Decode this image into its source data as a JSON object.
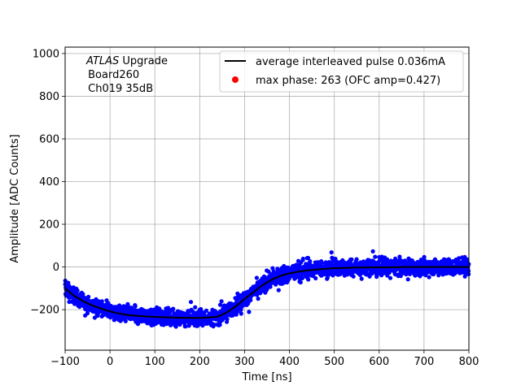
{
  "chart_data": {
    "type": "scatter",
    "xlabel": "Time [ns]",
    "ylabel": "Amplitude [ADC Counts]",
    "xlim": [
      -100,
      800
    ],
    "ylim": [
      -390,
      1030
    ],
    "x_ticks": [
      -100,
      0,
      100,
      200,
      300,
      400,
      500,
      600,
      700,
      800
    ],
    "y_ticks": [
      -200,
      0,
      200,
      400,
      600,
      800,
      1000
    ],
    "grid": true,
    "annotation": {
      "line1_italic": "ATLAS",
      "line1_rest": " Upgrade",
      "line2": " Board260",
      "line3": " Ch019 35dB"
    },
    "legend": {
      "placement": "top-right",
      "entries": [
        {
          "label": "average interleaved pulse 0.036mA",
          "color": "#000000",
          "marker": "line"
        },
        {
          "label": "max phase: 263 (OFC amp=0.427)",
          "color": "#ff0000",
          "marker": "dot"
        }
      ]
    },
    "series": [
      {
        "kind": "scatter",
        "color": "#0000ff",
        "noise_sigma": 18,
        "x_range": [
          -100,
          800
        ]
      },
      {
        "kind": "line",
        "color": "#000000",
        "x": [
          -100,
          -80,
          -60,
          -40,
          -20,
          0,
          20,
          40,
          60,
          80,
          100,
          120,
          140,
          160,
          180,
          200,
          220,
          240,
          260,
          280,
          300,
          320,
          340,
          360,
          380,
          400,
          420,
          440,
          460,
          480,
          500,
          550,
          600,
          650,
          700,
          750,
          800
        ],
        "y": [
          -100,
          -135,
          -160,
          -180,
          -195,
          -208,
          -218,
          -225,
          -229,
          -232,
          -234,
          -236,
          -237,
          -238,
          -239,
          -239,
          -237,
          -233,
          -213,
          -185,
          -150,
          -118,
          -85,
          -60,
          -42,
          -30,
          -22,
          -16,
          -12,
          -9,
          -6,
          -3,
          -2,
          -1,
          0,
          0,
          0
        ]
      }
    ]
  }
}
